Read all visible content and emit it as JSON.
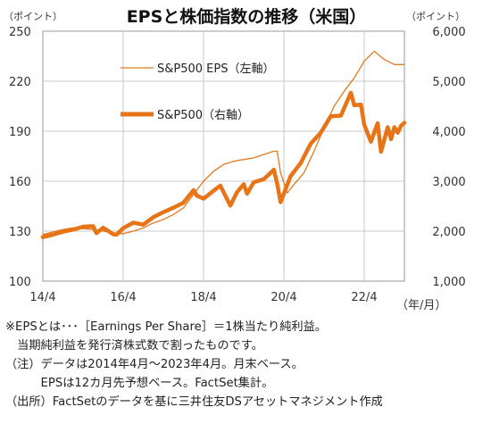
{
  "chart_data": {
    "type": "line",
    "title": "EPSと株価指数の推移（米国）",
    "y_left_unit": "（ポイント）",
    "y_right_unit": "（ポイント）",
    "x_unit": "（年/月）",
    "y_left_ticks": [
      "250",
      "220",
      "190",
      "160",
      "130",
      "100"
    ],
    "y_right_ticks": [
      "6,000",
      "5,000",
      "4,000",
      "3,000",
      "2,000",
      "1,000"
    ],
    "x_ticks": [
      "14/4",
      "16/4",
      "18/4",
      "20/4",
      "22/4"
    ],
    "ylim_left": [
      100,
      250
    ],
    "ylim_right": [
      1000,
      6000
    ],
    "x_start": "2014-04",
    "x_end": "2023-04",
    "legend_placement": "top-left",
    "colors": {
      "eps": "#e07a22",
      "sp500": "#e77417",
      "axis": "#999999"
    },
    "series": [
      {
        "name": "S&P500 EPS（左軸）",
        "axis": "left",
        "points": [
          [
            "2014-04",
            128
          ],
          [
            "2014-07",
            129.5
          ],
          [
            "2014-10",
            131
          ],
          [
            "2015-01",
            132
          ],
          [
            "2015-04",
            131.5
          ],
          [
            "2015-07",
            131
          ],
          [
            "2015-10",
            130
          ],
          [
            "2016-01",
            129
          ],
          [
            "2016-04",
            128.5
          ],
          [
            "2016-07",
            130
          ],
          [
            "2016-10",
            132
          ],
          [
            "2017-01",
            135
          ],
          [
            "2017-04",
            137
          ],
          [
            "2017-07",
            140
          ],
          [
            "2017-10",
            144
          ],
          [
            "2018-01",
            152
          ],
          [
            "2018-04",
            160
          ],
          [
            "2018-07",
            166
          ],
          [
            "2018-10",
            170
          ],
          [
            "2019-01",
            172
          ],
          [
            "2019-04",
            173
          ],
          [
            "2019-07",
            174
          ],
          [
            "2019-10",
            176
          ],
          [
            "2020-01",
            178
          ],
          [
            "2020-02",
            178
          ],
          [
            "2020-03",
            165
          ],
          [
            "2020-05",
            153
          ],
          [
            "2020-07",
            158
          ],
          [
            "2020-10",
            165
          ],
          [
            "2021-01",
            178
          ],
          [
            "2021-04",
            192
          ],
          [
            "2021-07",
            205
          ],
          [
            "2021-10",
            214
          ],
          [
            "2022-01",
            222
          ],
          [
            "2022-04",
            232
          ],
          [
            "2022-07",
            238
          ],
          [
            "2022-10",
            233
          ],
          [
            "2023-01",
            230
          ],
          [
            "2023-04",
            230
          ]
        ]
      },
      {
        "name": "S&P500（右軸）",
        "axis": "right",
        "points": [
          [
            "2014-04",
            1880
          ],
          [
            "2014-07",
            1930
          ],
          [
            "2014-10",
            1990
          ],
          [
            "2015-01",
            2030
          ],
          [
            "2015-04",
            2090
          ],
          [
            "2015-07",
            2100
          ],
          [
            "2015-08",
            1960
          ],
          [
            "2015-10",
            2070
          ],
          [
            "2016-01",
            1940
          ],
          [
            "2016-02",
            1930
          ],
          [
            "2016-04",
            2060
          ],
          [
            "2016-07",
            2170
          ],
          [
            "2016-10",
            2130
          ],
          [
            "2017-01",
            2280
          ],
          [
            "2017-04",
            2380
          ],
          [
            "2017-07",
            2470
          ],
          [
            "2017-10",
            2570
          ],
          [
            "2018-01",
            2820
          ],
          [
            "2018-02",
            2710
          ],
          [
            "2018-04",
            2650
          ],
          [
            "2018-07",
            2810
          ],
          [
            "2018-09",
            2910
          ],
          [
            "2018-12",
            2510
          ],
          [
            "2019-02",
            2780
          ],
          [
            "2019-04",
            2940
          ],
          [
            "2019-05",
            2750
          ],
          [
            "2019-07",
            2980
          ],
          [
            "2019-10",
            3040
          ],
          [
            "2020-01",
            3230
          ],
          [
            "2020-02",
            2950
          ],
          [
            "2020-03",
            2580
          ],
          [
            "2020-06",
            3100
          ],
          [
            "2020-09",
            3360
          ],
          [
            "2020-12",
            3750
          ],
          [
            "2021-03",
            3970
          ],
          [
            "2021-06",
            4300
          ],
          [
            "2021-09",
            4310
          ],
          [
            "2021-12",
            4770
          ],
          [
            "2022-01",
            4520
          ],
          [
            "2022-03",
            4530
          ],
          [
            "2022-04",
            4130
          ],
          [
            "2022-06",
            3790
          ],
          [
            "2022-08",
            4160
          ],
          [
            "2022-09",
            3590
          ],
          [
            "2022-11",
            4080
          ],
          [
            "2022-12",
            3840
          ],
          [
            "2023-01",
            4080
          ],
          [
            "2023-02",
            3970
          ],
          [
            "2023-03",
            4110
          ],
          [
            "2023-04",
            4170
          ]
        ]
      }
    ]
  },
  "notes": [
    "※EPSとは･･･［Earnings Per Share］＝1株当たり純利益。",
    "　当期純利益を発行済株式数で割ったものです。",
    "（注）データは2014年4月～2023年4月。月末ベース。",
    "　　　EPSは12カ月先予想ベース。FactSet集計。",
    "（出所）FactSetのデータを基に三井住友DSアセットマネジメント作成"
  ]
}
